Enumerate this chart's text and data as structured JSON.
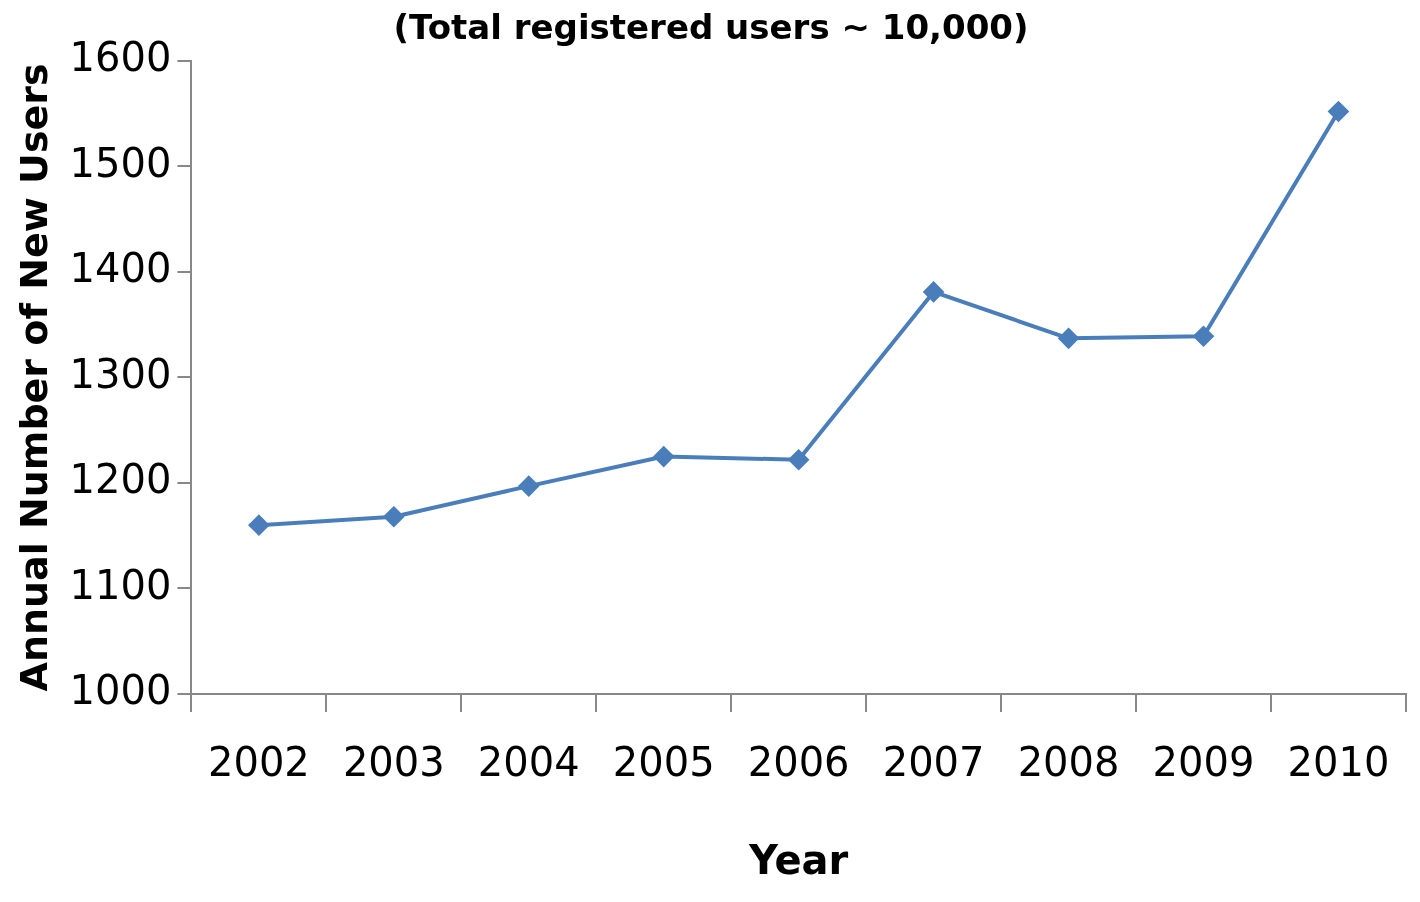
{
  "chart_data": {
    "type": "line",
    "title": "(Total registered users ~ 10,000)",
    "xlabel": "Year",
    "ylabel": "Annual Number of New Users",
    "categories": [
      "2002",
      "2003",
      "2004",
      "2005",
      "2006",
      "2007",
      "2008",
      "2009",
      "2010"
    ],
    "series": [
      {
        "color": "#4a7ebb",
        "values": [
          1160,
          1168,
          1197,
          1225,
          1222,
          1381,
          1337,
          1339,
          1552
        ]
      }
    ],
    "ylim": [
      1000,
      1600
    ],
    "yticks": [
      1000,
      1100,
      1200,
      1300,
      1400,
      1500,
      1600
    ],
    "grid": false,
    "legend": false,
    "marker": "diamond",
    "line_style": "solid"
  }
}
